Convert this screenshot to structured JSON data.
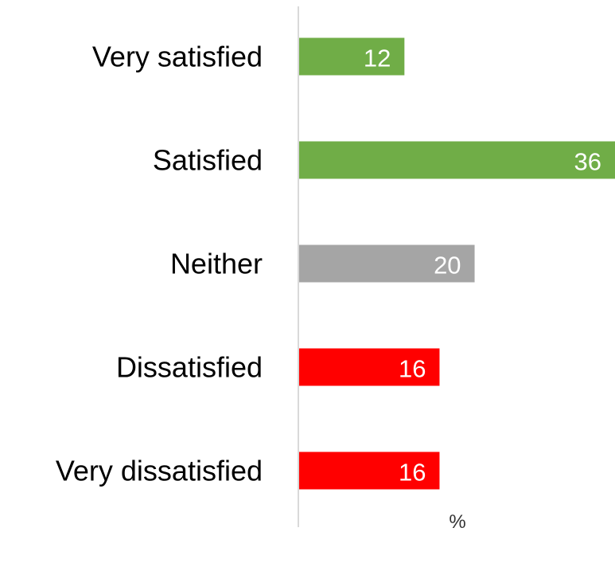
{
  "chart_data": {
    "type": "bar",
    "orientation": "horizontal",
    "categories": [
      "Very satisfied",
      "Satisfied",
      "Neither",
      "Dissatisfied",
      "Very dissatisfied"
    ],
    "values": [
      12,
      36,
      20,
      16,
      16
    ],
    "colors": [
      "#70AD47",
      "#70AD47",
      "#A5A5A5",
      "#FF0000",
      "#FF0000"
    ],
    "xlabel": "%",
    "ylabel": "",
    "title": "",
    "xlim": [
      0,
      36
    ],
    "grid": false,
    "data_labels": true,
    "label_color": "#FFFFFF",
    "axis_color": "#D9D9D9"
  }
}
